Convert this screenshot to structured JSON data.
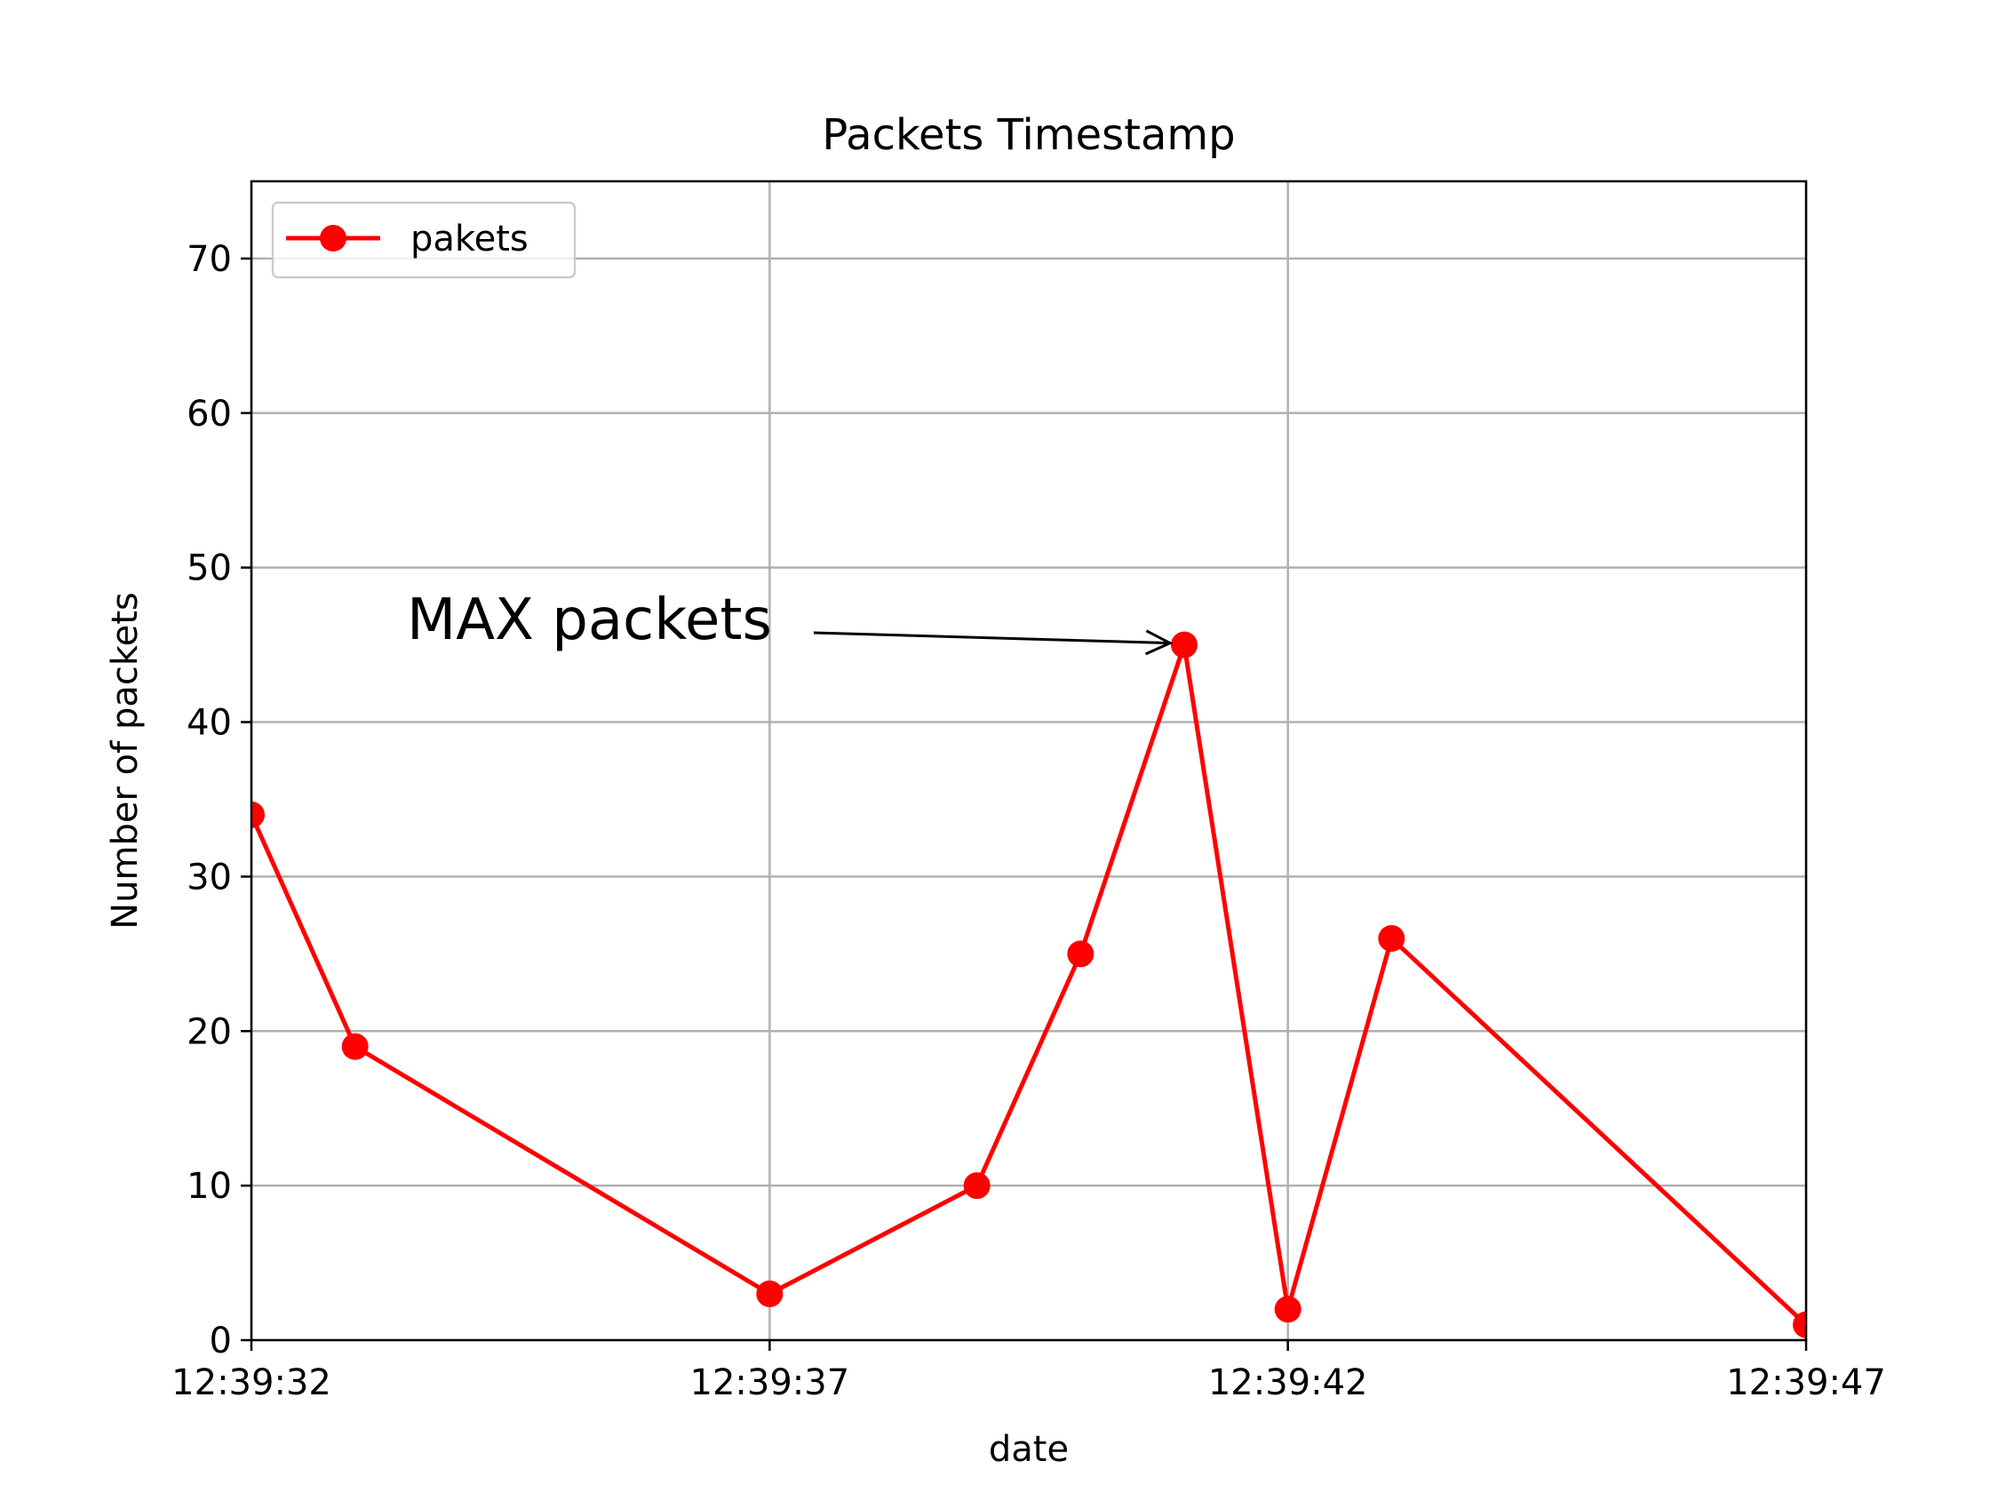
{
  "chart_data": {
    "type": "line",
    "title": "Packets Timestamp",
    "xlabel": "date",
    "ylabel": "Number of packets",
    "x_ticks": [
      "12:39:32",
      "12:39:37",
      "12:39:42",
      "12:39:47"
    ],
    "xlim": [
      "12:39:32",
      "12:39:47"
    ],
    "y_ticks": [
      0,
      10,
      20,
      30,
      40,
      50,
      60,
      70
    ],
    "ylim": [
      0,
      75
    ],
    "grid": true,
    "legend": "upper-left",
    "series": [
      {
        "name": "pakets",
        "color": "#ff0000",
        "marker": "circle",
        "points": [
          {
            "x": "12:39:32",
            "y": 34
          },
          {
            "x": "12:39:33",
            "y": 19
          },
          {
            "x": "12:39:37",
            "y": 3
          },
          {
            "x": "12:39:39",
            "y": 10
          },
          {
            "x": "12:39:40",
            "y": 25
          },
          {
            "x": "12:39:41",
            "y": 45
          },
          {
            "x": "12:39:42",
            "y": 2
          },
          {
            "x": "12:39:43",
            "y": 26
          },
          {
            "x": "12:39:47",
            "y": 1
          }
        ]
      }
    ],
    "annotations": [
      {
        "text": "MAX packets",
        "target": {
          "x": "12:39:41",
          "y": 45
        },
        "arrow": true
      }
    ]
  }
}
